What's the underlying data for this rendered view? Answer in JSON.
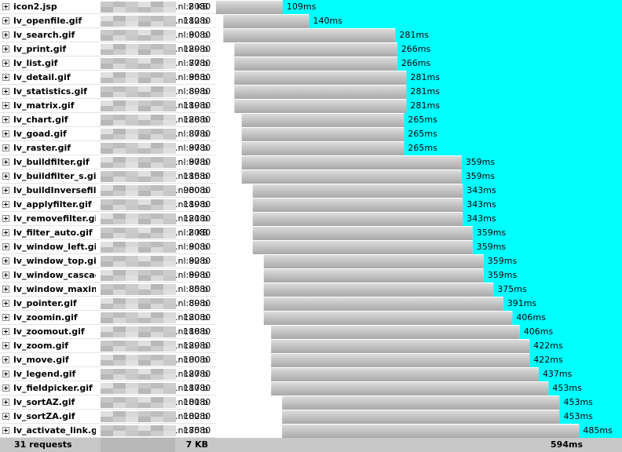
{
  "rows": [
    {
      "name": "icon2.jsp",
      "domain": ".nl:8080",
      "size": "2 KB",
      "time": "109ms",
      "start": 0,
      "duration": 109
    },
    {
      "name": "lv_openfile.gif",
      "domain": ".nl:8080",
      "size": "112 b",
      "time": "140ms",
      "start": 12,
      "duration": 140
    },
    {
      "name": "lv_search.gif",
      "domain": ".nl:8080",
      "size": "90 b",
      "time": "281ms",
      "start": 12,
      "duration": 281
    },
    {
      "name": "lv_print.gif",
      "domain": ".nl:8080",
      "size": "129 b",
      "time": "266ms",
      "start": 30,
      "duration": 266
    },
    {
      "name": "lv_list.gif",
      "domain": ".nl:8080",
      "size": "77 b",
      "time": "266ms",
      "start": 30,
      "duration": 266
    },
    {
      "name": "lv_detail.gif",
      "domain": ".nl:8080",
      "size": "95 b",
      "time": "281ms",
      "start": 30,
      "duration": 281
    },
    {
      "name": "lv_statistics.gif",
      "domain": ".nl:8080",
      "size": "89 b",
      "time": "281ms",
      "start": 30,
      "duration": 281
    },
    {
      "name": "lv_matrix.gif",
      "domain": ".nl:8080",
      "size": "119 b",
      "time": "281ms",
      "start": 30,
      "duration": 281
    },
    {
      "name": "lv_chart.gif",
      "domain": ".nl:8080",
      "size": "128 b",
      "time": "265ms",
      "start": 42,
      "duration": 265
    },
    {
      "name": "lv_goad.gif",
      "domain": ".nl:8080",
      "size": "87 b",
      "time": "265ms",
      "start": 42,
      "duration": 265
    },
    {
      "name": "lv_raster.gif",
      "domain": ".nl:8080",
      "size": "97 b",
      "time": "265ms",
      "start": 42,
      "duration": 265
    },
    {
      "name": "lv_buildfilter.gif",
      "domain": ".nl:8080",
      "size": "97 b",
      "time": "359ms",
      "start": 42,
      "duration": 359
    },
    {
      "name": "lv_buildfilter_s.gif",
      "domain": ".nl:8080",
      "size": "115 b",
      "time": "359ms",
      "start": 42,
      "duration": 359
    },
    {
      "name": "lv_buildInversefilt",
      "domain": ".nl:8080",
      "size": "900 b",
      "time": "343ms",
      "start": 60,
      "duration": 343
    },
    {
      "name": "lv_applyfilter.gif",
      "domain": ".nl:8080",
      "size": "119 b",
      "time": "343ms",
      "start": 60,
      "duration": 343
    },
    {
      "name": "lv_removefilter.gi",
      "domain": ".nl:8080",
      "size": "121 b",
      "time": "343ms",
      "start": 60,
      "duration": 343
    },
    {
      "name": "lv_filter_auto.gif",
      "domain": ".nl:8080",
      "size": "2 KB",
      "time": "359ms",
      "start": 60,
      "duration": 359
    },
    {
      "name": "lv_window_left.gif",
      "domain": ".nl:8080",
      "size": "90 b",
      "time": "359ms",
      "start": 60,
      "duration": 359
    },
    {
      "name": "lv_window_top.gif",
      "domain": ".nl:8080",
      "size": "92 b",
      "time": "359ms",
      "start": 78,
      "duration": 359
    },
    {
      "name": "lv_window_cascac",
      "domain": ".nl:8080",
      "size": "99 b",
      "time": "359ms",
      "start": 78,
      "duration": 359
    },
    {
      "name": "lv_window_maxin",
      "domain": ".nl:8080",
      "size": "85 b",
      "time": "375ms",
      "start": 78,
      "duration": 375
    },
    {
      "name": "lv_pointer.gif",
      "domain": ".nl:8080",
      "size": "89 b",
      "time": "391ms",
      "start": 78,
      "duration": 391
    },
    {
      "name": "lv_zoomin.gif",
      "domain": ".nl:8080",
      "size": "120 b",
      "time": "406ms",
      "start": 78,
      "duration": 406
    },
    {
      "name": "lv_zoomout.gif",
      "domain": ".nl:8080",
      "size": "118 b",
      "time": "406ms",
      "start": 90,
      "duration": 406
    },
    {
      "name": "lv_zoom.gif",
      "domain": ".nl:8080",
      "size": "129 b",
      "time": "422ms",
      "start": 90,
      "duration": 422
    },
    {
      "name": "lv_move.gif",
      "domain": ".nl:8080",
      "size": "100 b",
      "time": "422ms",
      "start": 90,
      "duration": 422
    },
    {
      "name": "lv_legend.gif",
      "domain": ".nl:8080",
      "size": "127 b",
      "time": "437ms",
      "start": 90,
      "duration": 437
    },
    {
      "name": "lv_fieldpicker.gif",
      "domain": ".nl:8080",
      "size": "117 b",
      "time": "453ms",
      "start": 90,
      "duration": 453
    },
    {
      "name": "lv_sortAZ.gif",
      "domain": ".nl:8080",
      "size": "101 b",
      "time": "453ms",
      "start": 108,
      "duration": 453
    },
    {
      "name": "lv_sortZA.gif",
      "domain": ".nl:8080",
      "size": "102 b",
      "time": "453ms",
      "start": 108,
      "duration": 453
    },
    {
      "name": "lv_activate_link.g",
      "domain": ".nl:8080",
      "size": "175 b",
      "time": "485ms",
      "start": 108,
      "duration": 485
    }
  ],
  "xlim": [
    0,
    663
  ],
  "footer": {
    "requests": "31 requests",
    "size": "7 KB",
    "time": "594ms"
  }
}
